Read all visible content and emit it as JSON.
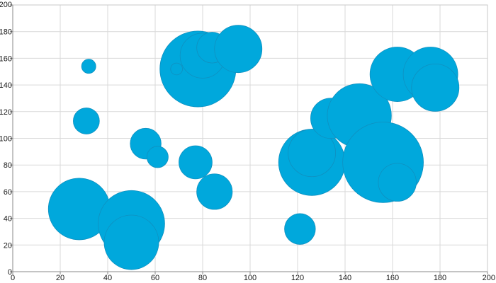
{
  "chart_data": {
    "type": "scatter",
    "variant": "bubble",
    "title": "",
    "xlabel": "",
    "ylabel": "",
    "xlim": [
      0,
      200
    ],
    "ylim": [
      0,
      200
    ],
    "x_ticks": [
      0,
      20,
      40,
      60,
      80,
      100,
      120,
      140,
      160,
      180,
      200
    ],
    "y_ticks": [
      0,
      20,
      40,
      60,
      80,
      100,
      120,
      140,
      160,
      180,
      200
    ],
    "x_tick_labels": [
      "0",
      "20",
      "40",
      "60",
      "80",
      "100",
      "120",
      "140",
      "160",
      "180",
      "200"
    ],
    "y_tick_labels": [
      "0",
      "20",
      "40",
      "60",
      "80",
      "100",
      "120",
      "140",
      "160",
      "180",
      "200"
    ],
    "grid": true,
    "legend": "none",
    "bubble_color": "#00a8dc",
    "bubble_outline_color": "#0f90c0",
    "series": [
      {
        "points": [
          {
            "x": 28,
            "y": 47,
            "r": 13
          },
          {
            "x": 50,
            "y": 36,
            "r": 14
          },
          {
            "x": 50,
            "y": 22,
            "r": 11.5
          },
          {
            "x": 31,
            "y": 113,
            "r": 5.5
          },
          {
            "x": 32,
            "y": 154,
            "r": 3
          },
          {
            "x": 56,
            "y": 96,
            "r": 6.5
          },
          {
            "x": 61,
            "y": 86,
            "r": 4.5
          },
          {
            "x": 77,
            "y": 82,
            "r": 7
          },
          {
            "x": 85,
            "y": 60,
            "r": 7.5
          },
          {
            "x": 78,
            "y": 152,
            "r": 16
          },
          {
            "x": 80,
            "y": 162,
            "r": 9.5
          },
          {
            "x": 84,
            "y": 168,
            "r": 6.5
          },
          {
            "x": 95,
            "y": 167,
            "r": 10
          },
          {
            "x": 69,
            "y": 152,
            "r": 2.5
          },
          {
            "x": 121,
            "y": 32,
            "r": 6.5
          },
          {
            "x": 126,
            "y": 82,
            "r": 14
          },
          {
            "x": 126,
            "y": 89,
            "r": 10
          },
          {
            "x": 134,
            "y": 115,
            "r": 8.5
          },
          {
            "x": 146,
            "y": 117,
            "r": 13.5
          },
          {
            "x": 156,
            "y": 82,
            "r": 17
          },
          {
            "x": 162,
            "y": 67,
            "r": 8
          },
          {
            "x": 162,
            "y": 148,
            "r": 11.5
          },
          {
            "x": 176,
            "y": 148,
            "r": 11.5
          },
          {
            "x": 178,
            "y": 138,
            "r": 10
          }
        ]
      }
    ]
  }
}
